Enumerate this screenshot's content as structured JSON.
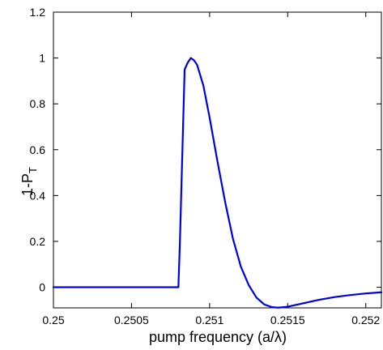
{
  "chart_data": {
    "type": "line",
    "title": "",
    "xlabel": "pump frequency (a/λ)",
    "ylabel": {
      "main": "1-P",
      "subscript": "T"
    },
    "xlim": [
      0.25,
      0.2521
    ],
    "ylim": [
      -0.09,
      1.2
    ],
    "xticks": [
      {
        "value": 0.25,
        "label": "0.25"
      },
      {
        "value": 0.2505,
        "label": "0.2505"
      },
      {
        "value": 0.251,
        "label": "0.251"
      },
      {
        "value": 0.2515,
        "label": "0.2515"
      },
      {
        "value": 0.252,
        "label": "0.252"
      }
    ],
    "yticks": [
      {
        "value": 0,
        "label": "0"
      },
      {
        "value": 0.2,
        "label": "0.2"
      },
      {
        "value": 0.4,
        "label": "0.4"
      },
      {
        "value": 0.6,
        "label": "0.6"
      },
      {
        "value": 0.8,
        "label": "0.8"
      },
      {
        "value": 1,
        "label": "1"
      },
      {
        "value": 1.2,
        "label": "1.2"
      }
    ],
    "grid": false,
    "legend": "none",
    "line_color": "#0000dd",
    "series": [
      {
        "x": [
          0.25,
          0.2502,
          0.2504,
          0.2506,
          0.2508,
          0.25081,
          0.25084,
          0.25086,
          0.25088,
          0.2509,
          0.25092,
          0.25096,
          0.251,
          0.25105,
          0.2511,
          0.25115,
          0.2512,
          0.25125,
          0.2513,
          0.25135,
          0.2514,
          0.25144,
          0.2515,
          0.2516,
          0.2517,
          0.2518,
          0.2519,
          0.252,
          0.2521
        ],
        "y": [
          0,
          0,
          0,
          0,
          0,
          0.2,
          0.95,
          0.98,
          1.0,
          0.99,
          0.97,
          0.88,
          0.74,
          0.55,
          0.37,
          0.21,
          0.09,
          0.01,
          -0.045,
          -0.075,
          -0.087,
          -0.089,
          -0.085,
          -0.07,
          -0.055,
          -0.043,
          -0.034,
          -0.027,
          -0.022
        ]
      }
    ]
  }
}
